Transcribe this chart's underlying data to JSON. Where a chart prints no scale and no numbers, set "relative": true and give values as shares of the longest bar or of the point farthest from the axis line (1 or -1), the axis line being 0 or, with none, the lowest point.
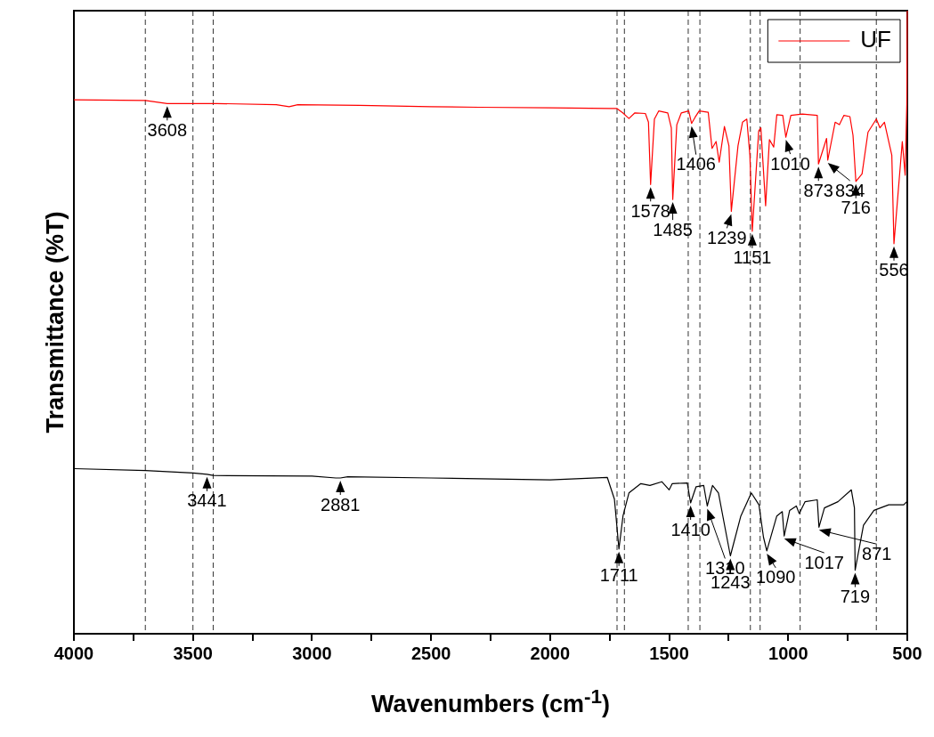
{
  "chart_data": {
    "type": "line",
    "xlabel": "Wavenumbers (cm$^{-1}$)",
    "ylabel": "Transmittance (%T)",
    "relative": true,
    "xlim": [
      4000,
      500
    ],
    "xticks": [
      4000,
      {
        "value": 3750,
        "label": null
      },
      3500,
      {
        "value": 3250,
        "label": null
      },
      3000,
      {
        "value": 2750,
        "label": null
      },
      2500,
      {
        "value": 2250,
        "label": null
      },
      2000,
      {
        "value": 1750,
        "label": null
      },
      1500,
      {
        "value": 1250,
        "label": null
      },
      1000,
      {
        "value": 750,
        "label": null
      },
      500
    ],
    "grid": false,
    "legend": "top right",
    "marker": "none",
    "line_style": "solid",
    "series": [
      {
        "name": "UF",
        "color": "#ff0000",
        "x": [
          4000,
          3700,
          3608,
          3400,
          3150,
          3096,
          3060,
          2800,
          2500,
          2300,
          2000,
          1750,
          1719,
          1695,
          1669,
          1644,
          1600,
          1587,
          1578,
          1562,
          1544,
          1506,
          1491,
          1485,
          1468,
          1449,
          1418,
          1406,
          1391,
          1374,
          1336,
          1320,
          1303,
          1290,
          1268,
          1249,
          1239,
          1211,
          1192,
          1174,
          1161,
          1151,
          1124,
          1115,
          1095,
          1079,
          1061,
          1048,
          1023,
          1010,
          989,
          941,
          878,
          873,
          839,
          834,
          803,
          785,
          766,
          741,
          728,
          716,
          690,
          665,
          630,
          615,
          596,
          565,
          556,
          521,
          509,
          502,
          500
        ],
        "values": [
          0.857,
          0.856,
          0.851,
          0.851,
          0.849,
          0.846,
          0.849,
          0.848,
          0.846,
          0.845,
          0.844,
          0.843,
          0.843,
          0.836,
          0.827,
          0.836,
          0.835,
          0.821,
          0.721,
          0.826,
          0.839,
          0.836,
          0.812,
          0.697,
          0.817,
          0.836,
          0.839,
          0.819,
          0.829,
          0.839,
          0.837,
          0.779,
          0.79,
          0.757,
          0.814,
          0.783,
          0.678,
          0.783,
          0.821,
          0.826,
          0.768,
          0.646,
          0.807,
          0.812,
          0.687,
          0.793,
          0.781,
          0.833,
          0.832,
          0.797,
          0.832,
          0.834,
          0.832,
          0.754,
          0.795,
          0.76,
          0.821,
          0.817,
          0.832,
          0.83,
          0.8,
          0.726,
          0.738,
          0.805,
          0.826,
          0.812,
          0.821,
          0.768,
          0.626,
          0.79,
          0.736,
          0.85,
          1.0
        ]
      },
      {
        "color": "#000000",
        "x": [
          4000,
          3700,
          3500,
          3441,
          3415,
          3000,
          2900,
          2881,
          2850,
          2500,
          2000,
          1760,
          1730,
          1711,
          1694,
          1669,
          1619,
          1581,
          1531,
          1500,
          1487,
          1424,
          1410,
          1387,
          1355,
          1340,
          1318,
          1293,
          1243,
          1199,
          1155,
          1123,
          1104,
          1090,
          1048,
          1025,
          1017,
          994,
          966,
          954,
          929,
          878,
          871,
          848,
          791,
          735,
          722,
          719,
          684,
          640,
          578,
          515,
          502,
          501,
          500
        ],
        "values": [
          0.265,
          0.262,
          0.258,
          0.256,
          0.254,
          0.253,
          0.25,
          0.25,
          0.252,
          0.25,
          0.247,
          0.251,
          0.216,
          0.136,
          0.189,
          0.226,
          0.241,
          0.238,
          0.244,
          0.231,
          0.241,
          0.242,
          0.21,
          0.236,
          0.238,
          0.205,
          0.238,
          0.226,
          0.125,
          0.189,
          0.226,
          0.207,
          0.155,
          0.133,
          0.189,
          0.196,
          0.157,
          0.198,
          0.205,
          0.193,
          0.212,
          0.215,
          0.171,
          0.202,
          0.212,
          0.231,
          0.202,
          0.102,
          0.174,
          0.198,
          0.207,
          0.207,
          0.212,
          0.24,
          0.1
        ]
      }
    ],
    "ref_lines": [
      {
        "axis": "x",
        "value": 3700,
        "line_style": "dashed"
      },
      {
        "axis": "x",
        "value": 3500,
        "line_style": "dashed"
      },
      {
        "axis": "x",
        "value": 3415,
        "line_style": "dashed"
      },
      {
        "axis": "x",
        "value": 1719,
        "line_style": "dashed"
      },
      {
        "axis": "x",
        "value": 1688,
        "line_style": "dashed"
      },
      {
        "axis": "x",
        "value": 1420,
        "line_style": "dashed"
      },
      {
        "axis": "x",
        "value": 1371,
        "line_style": "dashed"
      },
      {
        "axis": "x",
        "value": 1159,
        "line_style": "dashed"
      },
      {
        "axis": "x",
        "value": 1118,
        "line_style": "dashed"
      },
      {
        "axis": "x",
        "value": 950,
        "line_style": "dashed"
      },
      {
        "axis": "x",
        "value": 630,
        "line_style": "dashed"
      }
    ],
    "annotations": [
      {
        "text": "3608",
        "x": 3608,
        "y": 0.851
      },
      {
        "text": "1578",
        "x": 1578,
        "y": 0.721
      },
      {
        "text": "1485",
        "x": 1485,
        "y": 0.697
      },
      {
        "text": "1406",
        "x": 1406,
        "y": 0.819
      },
      {
        "text": "1239",
        "x": 1239,
        "y": 0.678
      },
      {
        "text": "1151",
        "x": 1151,
        "y": 0.646
      },
      {
        "text": "1010",
        "x": 1010,
        "y": 0.797
      },
      {
        "text": "873",
        "x": 873,
        "y": 0.754
      },
      {
        "text": "834",
        "x": 834,
        "y": 0.76
      },
      {
        "text": "716",
        "x": 716,
        "y": 0.726
      },
      {
        "text": "556",
        "x": 556,
        "y": 0.626
      },
      {
        "text": "3441",
        "x": 3441,
        "y": 0.256
      },
      {
        "text": "2881",
        "x": 2881,
        "y": 0.25
      },
      {
        "text": "1711",
        "x": 1711,
        "y": 0.136
      },
      {
        "text": "1410",
        "x": 1410,
        "y": 0.21
      },
      {
        "text": "1310",
        "x": 1340,
        "y": 0.205
      },
      {
        "text": "1243",
        "x": 1243,
        "y": 0.125
      },
      {
        "text": "1090",
        "x": 1090,
        "y": 0.133
      },
      {
        "text": "1017",
        "x": 1017,
        "y": 0.157
      },
      {
        "text": "871",
        "x": 871,
        "y": 0.171
      },
      {
        "text": "719",
        "x": 719,
        "y": 0.102
      }
    ]
  }
}
